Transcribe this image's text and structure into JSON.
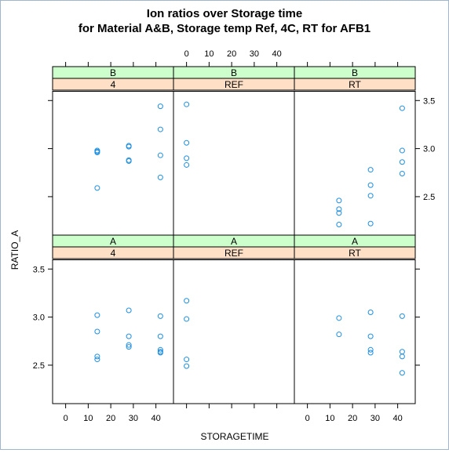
{
  "chart_data": {
    "type": "scatter",
    "title_lines": [
      "Ion ratios over Storage time",
      "for Material A&B, Storage temp Ref, 4C, RT for AFB1"
    ],
    "xlabel": "STORAGETIME",
    "ylabel": "RATIO_A",
    "xlim": [
      -3,
      45
    ],
    "ylim_top_row": [
      2.1,
      3.6
    ],
    "ylim_bottom_row": [
      2.1,
      3.6
    ],
    "x_ticks": [
      0,
      10,
      20,
      30,
      40
    ],
    "y_ticks": [
      2.5,
      3.0,
      3.5
    ],
    "y_tick_labels": [
      "2.5",
      "3.0",
      "3.5"
    ],
    "point_color": "#1e8fe0",
    "strip_colors": {
      "material": "#ccffcc",
      "temp": "#ffe0c6"
    },
    "panels": [
      {
        "material": "B",
        "temp": "4",
        "row": 0,
        "col": 0,
        "points": [
          [
            14,
            2.98
          ],
          [
            14,
            2.96
          ],
          [
            14,
            2.97
          ],
          [
            28,
            3.03
          ],
          [
            28,
            3.02
          ],
          [
            28,
            2.88
          ],
          [
            28,
            2.87
          ],
          [
            42,
            3.44
          ],
          [
            42,
            3.2
          ],
          [
            42,
            2.93
          ],
          [
            42,
            2.7
          ],
          [
            14,
            2.59
          ]
        ]
      },
      {
        "material": "B",
        "temp": "REF",
        "row": 0,
        "col": 1,
        "points": [
          [
            0,
            3.46
          ],
          [
            0,
            3.06
          ],
          [
            0,
            2.9
          ],
          [
            0,
            2.83
          ]
        ]
      },
      {
        "material": "B",
        "temp": "RT",
        "row": 0,
        "col": 2,
        "points": [
          [
            14,
            2.46
          ],
          [
            14,
            2.37
          ],
          [
            14,
            2.33
          ],
          [
            14,
            2.21
          ],
          [
            28,
            2.78
          ],
          [
            28,
            2.62
          ],
          [
            28,
            2.51
          ],
          [
            28,
            2.22
          ],
          [
            42,
            3.42
          ],
          [
            42,
            2.98
          ],
          [
            42,
            2.86
          ],
          [
            42,
            2.74
          ]
        ]
      },
      {
        "material": "A",
        "temp": "4",
        "row": 1,
        "col": 0,
        "points": [
          [
            14,
            3.02
          ],
          [
            14,
            2.85
          ],
          [
            14,
            2.59
          ],
          [
            14,
            2.56
          ],
          [
            28,
            3.07
          ],
          [
            28,
            2.8
          ],
          [
            28,
            2.71
          ],
          [
            28,
            2.69
          ],
          [
            42,
            3.01
          ],
          [
            42,
            2.8
          ],
          [
            42,
            2.66
          ],
          [
            42,
            2.64
          ],
          [
            42,
            2.63
          ]
        ]
      },
      {
        "material": "A",
        "temp": "REF",
        "row": 1,
        "col": 1,
        "points": [
          [
            0,
            3.17
          ],
          [
            0,
            2.98
          ],
          [
            0,
            2.56
          ],
          [
            0,
            2.49
          ]
        ]
      },
      {
        "material": "A",
        "temp": "RT",
        "row": 1,
        "col": 2,
        "points": [
          [
            14,
            2.99
          ],
          [
            14,
            2.82
          ],
          [
            28,
            3.05
          ],
          [
            28,
            2.8
          ],
          [
            28,
            2.66
          ],
          [
            28,
            2.63
          ],
          [
            42,
            3.01
          ],
          [
            42,
            2.64
          ],
          [
            42,
            2.59
          ],
          [
            42,
            2.42
          ]
        ]
      }
    ]
  }
}
